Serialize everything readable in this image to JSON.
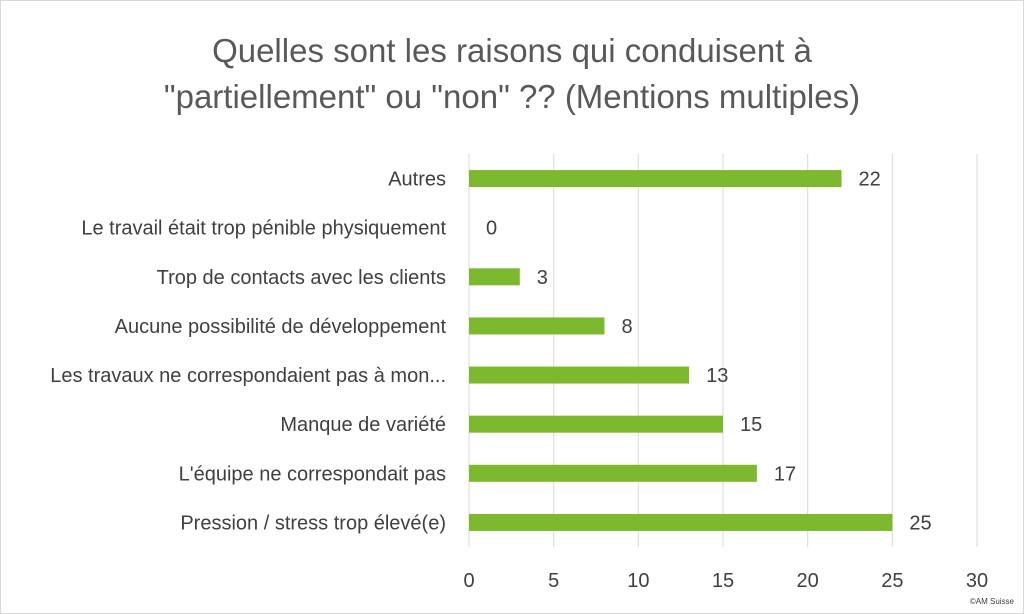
{
  "chart_data": {
    "type": "bar",
    "orientation": "horizontal",
    "title_lines": [
      "Quelles sont les raisons qui conduisent à",
      "\"partiellement\" ou \"non\" ?? (Mentions multiples)"
    ],
    "categories": [
      "Autres",
      "Le travail était trop pénible physiquement",
      "Trop de contacts avec les clients",
      "Aucune possibilité de développement",
      "Les travaux ne correspondaient pas à mon...",
      "Manque de variété",
      "L'équipe ne correspondait pas",
      "Pression / stress trop élevé(e)"
    ],
    "values": [
      22,
      0,
      3,
      8,
      13,
      15,
      17,
      25
    ],
    "xlim": [
      0,
      30
    ],
    "xticks": [
      0,
      5,
      10,
      15,
      20,
      25,
      30
    ],
    "grid": "vertical",
    "data_labels": true,
    "bar_color": "#7cb92f",
    "grid_color": "#d9d9d9",
    "label_color": "#404040"
  },
  "credit": "©AM Suisse"
}
